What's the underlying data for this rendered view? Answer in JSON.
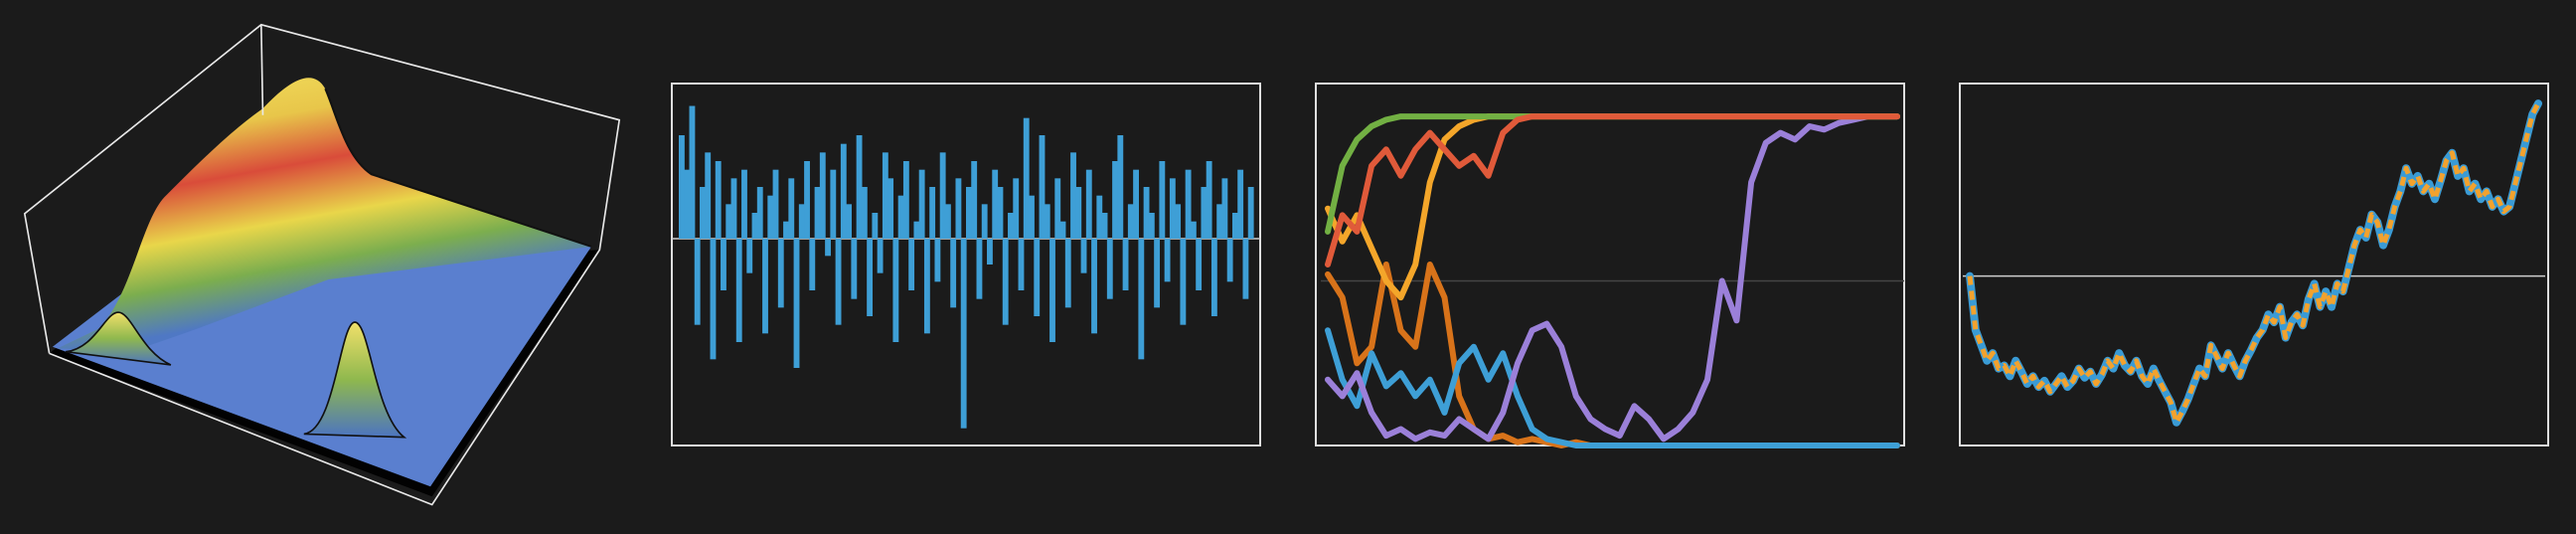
{
  "chart_data": [
    {
      "type": "bar",
      "color": "#3e9fd6",
      "ylim": [
        -1.2,
        0.9
      ],
      "yticks": [
        0
      ],
      "grid": true,
      "values": [
        0.6,
        0.4,
        0.77,
        -0.5,
        0.3,
        0.5,
        -0.7,
        0.45,
        -0.3,
        0.2,
        0.35,
        -0.6,
        0.4,
        -0.2,
        0.15,
        0.3,
        -0.55,
        0.25,
        0.4,
        -0.4,
        0.1,
        0.35,
        -0.75,
        0.2,
        0.45,
        -0.3,
        0.3,
        0.5,
        -0.1,
        0.4,
        -0.5,
        0.55,
        0.2,
        -0.35,
        0.6,
        0.3,
        -0.45,
        0.15,
        -0.2,
        0.5,
        0.35,
        -0.6,
        0.25,
        0.45,
        -0.3,
        0.1,
        0.4,
        -0.55,
        0.3,
        -0.25,
        0.5,
        0.2,
        -0.4,
        0.35,
        -1.1,
        0.3,
        0.45,
        -0.35,
        0.2,
        -0.15,
        0.4,
        0.3,
        -0.5,
        0.15,
        0.35,
        -0.3,
        0.7,
        0.25,
        -0.45,
        0.6,
        0.2,
        -0.6,
        0.35,
        0.1,
        -0.4,
        0.5,
        0.3,
        -0.2,
        0.4,
        -0.55,
        0.25,
        0.15,
        -0.35,
        0.45,
        0.6,
        -0.3,
        0.2,
        0.4,
        -0.7,
        0.3,
        0.15,
        -0.4,
        0.45,
        -0.25,
        0.35,
        0.2,
        -0.5,
        0.4,
        0.1,
        -0.3,
        0.3,
        0.45,
        -0.45,
        0.2,
        0.35,
        -0.25,
        0.15,
        0.4,
        -0.35,
        0.3
      ]
    },
    {
      "type": "line",
      "ylim": [
        0,
        1.1
      ],
      "yticks": [
        0.5
      ],
      "grid": true,
      "series": [
        {
          "color": "#d8731a",
          "values": [
            0.52,
            0.45,
            0.25,
            0.3,
            0.55,
            0.35,
            0.3,
            0.55,
            0.45,
            0.15,
            0.05,
            0.02,
            0.03,
            0.01,
            0.02,
            0.01,
            0,
            0.01,
            0,
            0,
            0,
            0,
            0,
            0,
            0,
            0,
            0,
            0,
            0,
            0,
            0,
            0,
            0,
            0,
            0,
            0,
            0,
            0,
            0,
            0
          ]
        },
        {
          "color": "#3e9fd6",
          "values": [
            0.35,
            0.2,
            0.12,
            0.28,
            0.18,
            0.22,
            0.15,
            0.2,
            0.1,
            0.25,
            0.3,
            0.2,
            0.28,
            0.15,
            0.05,
            0.02,
            0.01,
            0,
            0,
            0,
            0,
            0,
            0,
            0,
            0,
            0,
            0,
            0,
            0,
            0,
            0,
            0,
            0,
            0,
            0,
            0,
            0,
            0,
            0,
            0
          ]
        },
        {
          "color": "#9b80d9",
          "values": [
            0.2,
            0.15,
            0.22,
            0.1,
            0.03,
            0.05,
            0.02,
            0.04,
            0.03,
            0.08,
            0.05,
            0.02,
            0.1,
            0.25,
            0.35,
            0.37,
            0.3,
            0.15,
            0.08,
            0.05,
            0.03,
            0.12,
            0.08,
            0.02,
            0.05,
            0.1,
            0.2,
            0.5,
            0.38,
            0.8,
            0.92,
            0.95,
            0.93,
            0.97,
            0.96,
            0.98,
            0.99,
            1,
            1,
            1
          ]
        },
        {
          "color": "#f4a62a",
          "values": [
            0.72,
            0.62,
            0.7,
            0.6,
            0.5,
            0.45,
            0.55,
            0.8,
            0.93,
            0.97,
            0.99,
            1,
            1,
            1,
            1,
            1,
            1,
            1,
            1,
            1,
            1,
            1,
            1,
            1,
            1,
            1,
            1,
            1,
            1,
            1,
            1,
            1,
            1,
            1,
            1,
            1,
            1,
            1,
            1,
            1
          ]
        },
        {
          "color": "#72b043",
          "values": [
            0.65,
            0.85,
            0.93,
            0.97,
            0.99,
            1,
            1,
            1,
            1,
            1,
            1,
            1,
            1,
            1,
            1,
            1,
            1,
            1,
            1,
            1,
            1,
            1,
            1,
            1,
            1,
            1,
            1,
            1,
            1,
            1,
            1,
            1,
            1,
            1,
            1,
            1,
            1,
            1,
            1,
            1
          ]
        },
        {
          "color": "#e05a3a",
          "values": [
            0.55,
            0.7,
            0.65,
            0.85,
            0.9,
            0.82,
            0.9,
            0.95,
            0.9,
            0.85,
            0.88,
            0.82,
            0.95,
            0.99,
            1,
            1,
            1,
            1,
            1,
            1,
            1,
            1,
            1,
            1,
            1,
            1,
            1,
            1,
            1,
            1,
            1,
            1,
            1,
            1,
            1,
            1,
            1,
            1,
            1,
            1
          ]
        }
      ]
    },
    {
      "type": "line",
      "ylim": [
        -1.1,
        1.25
      ],
      "yticks": [
        0
      ],
      "grid": true,
      "series": [
        {
          "color": "#3a9bd5",
          "values": [
            0,
            -0.35,
            -0.45,
            -0.55,
            -0.5,
            -0.6,
            -0.58,
            -0.65,
            -0.55,
            -0.62,
            -0.7,
            -0.65,
            -0.72,
            -0.68,
            -0.75,
            -0.7,
            -0.65,
            -0.72,
            -0.68,
            -0.6,
            -0.66,
            -0.62,
            -0.7,
            -0.64,
            -0.55,
            -0.6,
            -0.5,
            -0.58,
            -0.62,
            -0.55,
            -0.65,
            -0.7,
            -0.6,
            -0.68,
            -0.75,
            -0.82,
            -0.95,
            -0.88,
            -0.8,
            -0.7,
            -0.6,
            -0.65,
            -0.45,
            -0.52,
            -0.6,
            -0.5,
            -0.58,
            -0.65,
            -0.55,
            -0.48,
            -0.4,
            -0.35,
            -0.25,
            -0.3,
            -0.2,
            -0.4,
            -0.3,
            -0.25,
            -0.32,
            -0.15,
            -0.05,
            -0.2,
            -0.1,
            -0.2,
            -0.05,
            -0.1,
            0.05,
            0.2,
            0.3,
            0.25,
            0.4,
            0.35,
            0.2,
            0.3,
            0.45,
            0.55,
            0.7,
            0.6,
            0.65,
            0.55,
            0.6,
            0.5,
            0.62,
            0.75,
            0.8,
            0.65,
            0.7,
            0.55,
            0.6,
            0.5,
            0.55,
            0.45,
            0.5,
            0.42,
            0.45,
            0.6,
            0.75,
            0.9,
            1.05,
            1.12
          ]
        },
        {
          "color": "#f2a22e",
          "dashed": true,
          "values": [
            0,
            -0.35,
            -0.45,
            -0.55,
            -0.5,
            -0.6,
            -0.58,
            -0.65,
            -0.55,
            -0.62,
            -0.7,
            -0.65,
            -0.72,
            -0.68,
            -0.75,
            -0.7,
            -0.65,
            -0.72,
            -0.68,
            -0.6,
            -0.66,
            -0.62,
            -0.7,
            -0.64,
            -0.55,
            -0.6,
            -0.5,
            -0.58,
            -0.62,
            -0.55,
            -0.65,
            -0.7,
            -0.6,
            -0.68,
            -0.75,
            -0.82,
            -0.95,
            -0.88,
            -0.8,
            -0.7,
            -0.6,
            -0.65,
            -0.45,
            -0.52,
            -0.6,
            -0.5,
            -0.58,
            -0.65,
            -0.55,
            -0.48,
            -0.4,
            -0.35,
            -0.25,
            -0.3,
            -0.2,
            -0.4,
            -0.3,
            -0.25,
            -0.32,
            -0.15,
            -0.05,
            -0.2,
            -0.1,
            -0.2,
            -0.05,
            -0.1,
            0.05,
            0.2,
            0.3,
            0.25,
            0.4,
            0.35,
            0.2,
            0.3,
            0.45,
            0.55,
            0.7,
            0.6,
            0.65,
            0.55,
            0.6,
            0.5,
            0.62,
            0.75,
            0.8,
            0.65,
            0.7,
            0.55,
            0.6,
            0.5,
            0.55,
            0.45,
            0.5,
            0.42,
            0.45,
            0.6,
            0.75,
            0.9,
            1.05,
            1.12
          ]
        }
      ]
    }
  ]
}
